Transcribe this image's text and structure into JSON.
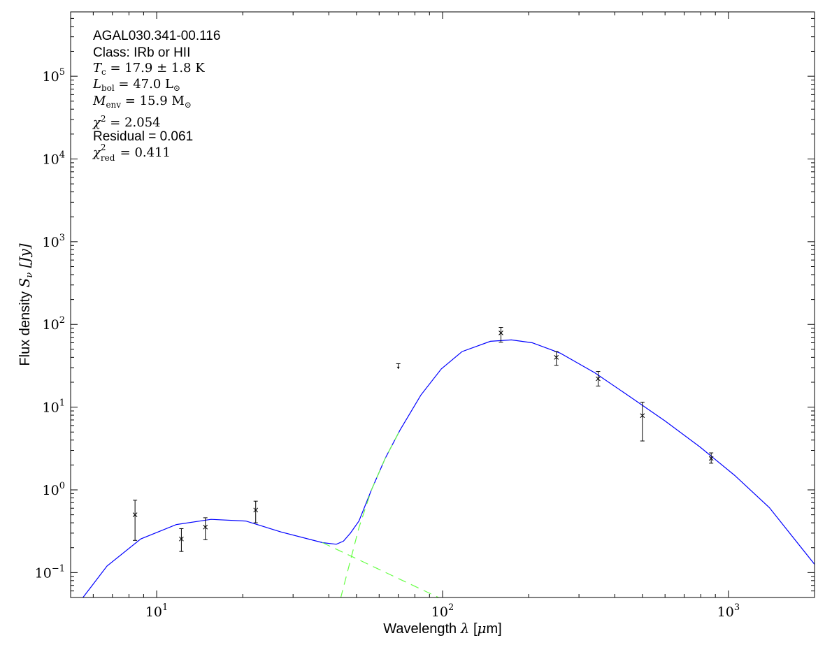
{
  "chart_data": {
    "type": "line",
    "xlabel": "Wavelength λ [μm]",
    "ylabel": "Flux density S_ν [Jy]",
    "xlabel_parts": {
      "pre": "Wavelength ",
      "sym": "λ",
      "post": " [",
      "mu": "μ",
      "unit": "m]"
    },
    "ylabel_parts": {
      "pre": "Flux density ",
      "sym": "S",
      "sub": "ν",
      "unit": " [Jy]"
    },
    "xscale": "log",
    "yscale": "log",
    "xlim": [
      5,
      2000
    ],
    "ylim": [
      0.05,
      600000
    ],
    "grid": false,
    "x_ticks": [
      {
        "value": 10,
        "base": "10",
        "exp": "1"
      },
      {
        "value": 100,
        "base": "10",
        "exp": "2"
      },
      {
        "value": 1000,
        "base": "10",
        "exp": "3"
      }
    ],
    "y_ticks": [
      {
        "value": 0.1,
        "base": "10",
        "exp": "−1"
      },
      {
        "value": 1,
        "base": "10",
        "exp": "0"
      },
      {
        "value": 10,
        "base": "10",
        "exp": "1"
      },
      {
        "value": 100,
        "base": "10",
        "exp": "2"
      },
      {
        "value": 1000,
        "base": "10",
        "exp": "3"
      },
      {
        "value": 10000,
        "base": "10",
        "exp": "4"
      },
      {
        "value": 100000,
        "base": "10",
        "exp": "5"
      }
    ],
    "annotations": {
      "source": "AGAL030.341-00.116",
      "class": "Class: IRb or HII",
      "tc": {
        "sym": "T",
        "sub": "c",
        "rest": " = 17.9 ± 1.8 K"
      },
      "lbol": {
        "sym": "L",
        "sub": "bol",
        "rest": " = 47.0 L",
        "sun": "⊙"
      },
      "menv": {
        "sym": "M",
        "sub": "env",
        "rest": " = 15.9 M",
        "sun": "⊙"
      },
      "chi2": {
        "sym": "χ",
        "sup": "2",
        "rest": " = 2.054"
      },
      "residual": "Residual = 0.061",
      "chi2red": {
        "sym": "χ",
        "sup": "2",
        "sub": "red",
        "rest": " = 0.411"
      }
    },
    "points": [
      {
        "x": 8.4,
        "y": 0.5,
        "lo": 0.245,
        "hi": 0.75
      },
      {
        "x": 12.2,
        "y": 0.255,
        "lo": 0.18,
        "hi": 0.34
      },
      {
        "x": 14.8,
        "y": 0.355,
        "lo": 0.25,
        "hi": 0.46
      },
      {
        "x": 22.2,
        "y": 0.57,
        "lo": 0.4,
        "hi": 0.73
      },
      {
        "x": 160,
        "y": 79,
        "lo": 61,
        "hi": 92
      },
      {
        "x": 250,
        "y": 40,
        "lo": 32,
        "hi": 47
      },
      {
        "x": 350,
        "y": 22,
        "lo": 18,
        "hi": 27
      },
      {
        "x": 500,
        "y": 7.9,
        "lo": 3.9,
        "hi": 11.5
      },
      {
        "x": 870,
        "y": 2.4,
        "lo": 2.1,
        "hi": 2.8
      }
    ],
    "upper_limits": [
      {
        "x": 70,
        "y": 29,
        "top": 33.5
      }
    ],
    "series": [
      {
        "style": "solid",
        "color": "#0000ff",
        "x": [
          5.5,
          6.7,
          8.8,
          11.7,
          15.5,
          20.5,
          27.2,
          38,
          42.5,
          45,
          47.6,
          51,
          56.4,
          63,
          71,
          84,
          99,
          117,
          147,
          174,
          206,
          258,
          341,
          452,
          600,
          795,
          1050,
          1390,
          2000
        ],
        "y": [
          0.049,
          0.12,
          0.255,
          0.38,
          0.44,
          0.42,
          0.31,
          0.23,
          0.22,
          0.24,
          0.3,
          0.42,
          1.0,
          2.4,
          5.3,
          14,
          29,
          47,
          62.5,
          65,
          60,
          45,
          26,
          13.4,
          6.8,
          3.3,
          1.5,
          0.61,
          0.126
        ]
      },
      {
        "style": "dashed",
        "color": "#66ff44",
        "x": [
          38,
          98
        ],
        "y": [
          0.23,
          0.049
        ]
      },
      {
        "style": "dashed",
        "color": "#66ff44",
        "x": [
          44,
          51,
          56.4,
          63,
          71
        ],
        "y": [
          0.049,
          0.35,
          1.0,
          2.4,
          5.3
        ]
      }
    ]
  }
}
